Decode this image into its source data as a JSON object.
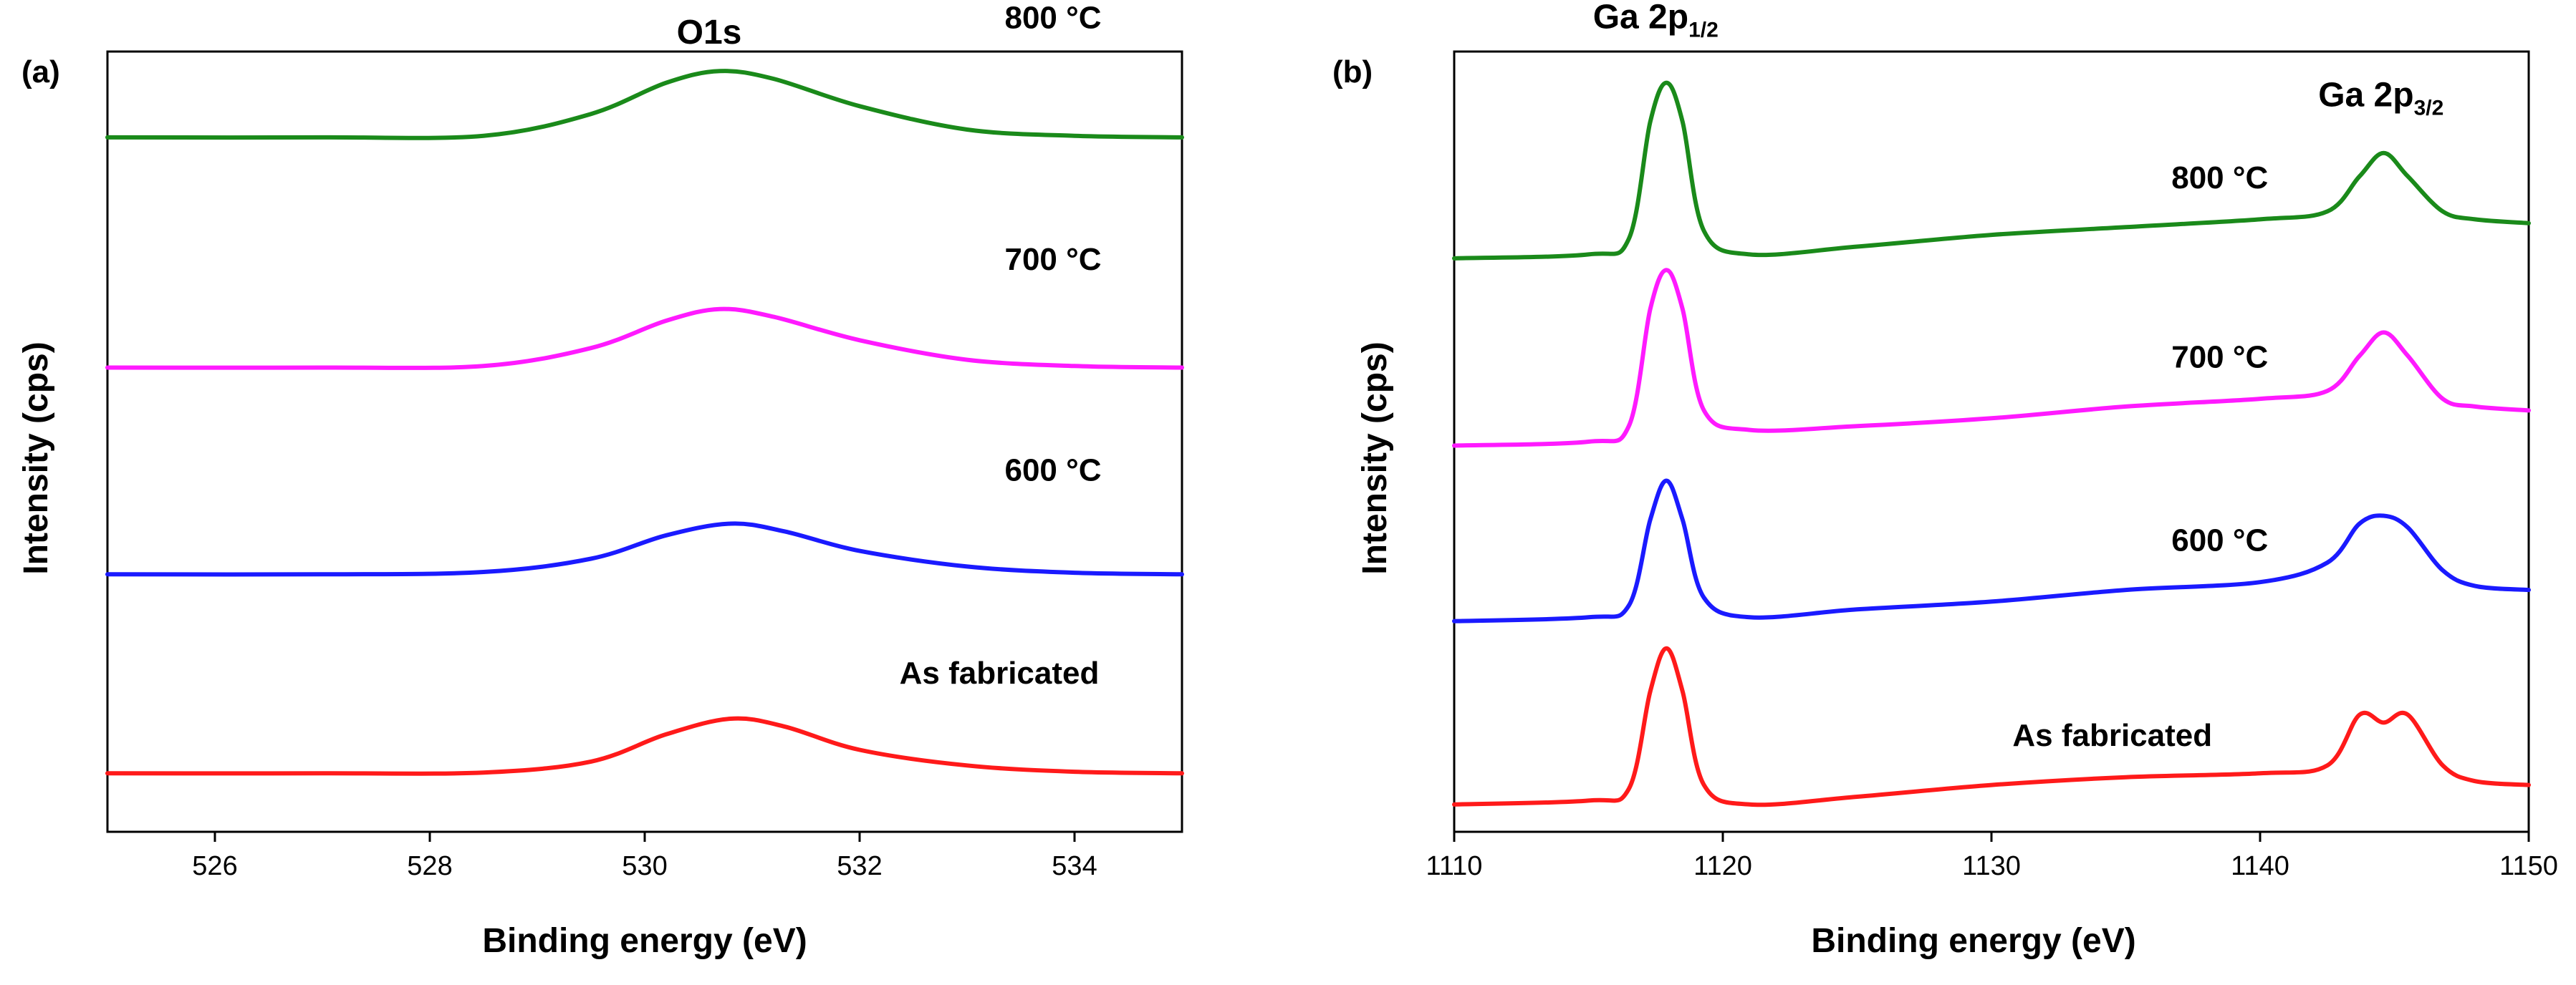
{
  "chart_data": [
    {
      "type": "line",
      "panel_label": "(a)",
      "title": "O1s",
      "xlabel": "Binding energy (eV)",
      "ylabel": "Intensity (cps)",
      "xlim": [
        525,
        535
      ],
      "ylim": [
        0,
        10
      ],
      "xticks": [
        526,
        528,
        530,
        532,
        534
      ],
      "yticks_shown": false,
      "series": [
        {
          "name": "As fabricated",
          "color": "#ff1a1a",
          "x": [
            525,
            527,
            528.5,
            529.5,
            530.2,
            530.8,
            531.3,
            532,
            533,
            534,
            535
          ],
          "y": [
            0.75,
            0.75,
            0.76,
            0.9,
            1.25,
            1.45,
            1.35,
            1.05,
            0.85,
            0.77,
            0.75
          ]
        },
        {
          "name": "600  °C",
          "color": "#1a1aff",
          "x": [
            525,
            527,
            528.5,
            529.5,
            530.2,
            530.8,
            531.3,
            532,
            533,
            534,
            535
          ],
          "y": [
            3.3,
            3.3,
            3.33,
            3.5,
            3.8,
            3.95,
            3.85,
            3.6,
            3.4,
            3.32,
            3.3
          ]
        },
        {
          "name": "700  °C",
          "color": "#ff1aff",
          "x": [
            525,
            527,
            528.5,
            529.5,
            530.2,
            530.7,
            531.2,
            532,
            533,
            534,
            535
          ],
          "y": [
            5.95,
            5.95,
            5.97,
            6.2,
            6.55,
            6.7,
            6.6,
            6.3,
            6.05,
            5.97,
            5.95
          ]
        },
        {
          "name": "800  °C",
          "color": "#1a8a1a",
          "x": [
            525,
            527,
            528.5,
            529.5,
            530.2,
            530.7,
            531.2,
            532,
            533,
            534,
            535
          ],
          "y": [
            8.9,
            8.9,
            8.92,
            9.2,
            9.6,
            9.75,
            9.65,
            9.3,
            9.0,
            8.92,
            8.9
          ]
        }
      ],
      "annotations": [
        {
          "text": "O1s",
          "x": 530.6,
          "y": 10.1
        },
        {
          "text": "800  °C",
          "x": 533.8,
          "y": 10.3
        },
        {
          "text": "700  °C",
          "x": 533.8,
          "y": 7.2
        },
        {
          "text": "600  °C",
          "x": 533.8,
          "y": 4.5
        },
        {
          "text": "As fabricated",
          "x": 533.3,
          "y": 1.9
        }
      ]
    },
    {
      "type": "line",
      "panel_label": "(b)",
      "xlabel": "Binding energy (eV)",
      "ylabel": "Intensity (cps)",
      "xlim": [
        1110,
        1150
      ],
      "ylim": [
        0,
        10
      ],
      "xticks": [
        1110,
        1120,
        1130,
        1140,
        1150
      ],
      "yticks_shown": false,
      "peak_labels": [
        {
          "main": "Ga 2p",
          "sub": "1/2",
          "x": 1117.5,
          "y": 10.3
        },
        {
          "main": "Ga 2p",
          "sub": "3/2",
          "x": 1144.5,
          "y": 9.3
        }
      ],
      "series": [
        {
          "name": "As fabricated",
          "color": "#ff1a1a",
          "x": [
            1110,
            1115,
            1116.5,
            1117.3,
            1117.9,
            1118.5,
            1119.3,
            1121,
            1125,
            1130,
            1135,
            1140,
            1142.5,
            1143.7,
            1144.6,
            1145.5,
            1146.8,
            1148,
            1150
          ],
          "y": [
            0.35,
            0.4,
            0.55,
            1.8,
            2.35,
            1.8,
            0.6,
            0.35,
            0.45,
            0.6,
            0.7,
            0.75,
            0.85,
            1.5,
            1.4,
            1.5,
            0.85,
            0.65,
            0.6
          ]
        },
        {
          "name": "600  °C",
          "color": "#1a1aff",
          "x": [
            1110,
            1115,
            1116.5,
            1117.3,
            1117.9,
            1118.5,
            1119.3,
            1121,
            1125,
            1130,
            1135,
            1140,
            1142.5,
            1143.7,
            1144.6,
            1145.5,
            1146.8,
            1148,
            1150
          ],
          "y": [
            2.7,
            2.75,
            2.9,
            4.0,
            4.5,
            4.0,
            3.0,
            2.75,
            2.85,
            2.95,
            3.1,
            3.2,
            3.45,
            3.95,
            4.05,
            3.9,
            3.35,
            3.15,
            3.1
          ]
        },
        {
          "name": "700  °C",
          "color": "#ff1aff",
          "x": [
            1110,
            1115,
            1116.5,
            1117.3,
            1117.9,
            1118.5,
            1119.3,
            1121,
            1125,
            1130,
            1135,
            1140,
            1142.5,
            1143.7,
            1144.6,
            1145.5,
            1146.8,
            1148,
            1150
          ],
          "y": [
            4.95,
            5.0,
            5.2,
            6.7,
            7.2,
            6.7,
            5.4,
            5.15,
            5.2,
            5.3,
            5.45,
            5.55,
            5.65,
            6.1,
            6.4,
            6.1,
            5.55,
            5.45,
            5.4
          ]
        },
        {
          "name": "800  °C",
          "color": "#1a8a1a",
          "x": [
            1110,
            1115,
            1116.5,
            1117.3,
            1117.9,
            1118.5,
            1119.3,
            1121,
            1125,
            1130,
            1135,
            1140,
            1142.5,
            1143.7,
            1144.6,
            1145.5,
            1146.8,
            1148,
            1150
          ],
          "y": [
            7.35,
            7.4,
            7.6,
            9.1,
            9.6,
            9.1,
            7.7,
            7.4,
            7.5,
            7.65,
            7.75,
            7.85,
            7.95,
            8.4,
            8.7,
            8.4,
            7.95,
            7.85,
            7.8
          ]
        }
      ],
      "annotations": [
        {
          "text": "800  °C",
          "x": 1138.5,
          "y": 8.25
        },
        {
          "text": "700  °C",
          "x": 1138.5,
          "y": 5.95
        },
        {
          "text": "600  °C",
          "x": 1138.5,
          "y": 3.6
        },
        {
          "text": "As fabricated",
          "x": 1134.5,
          "y": 1.1
        }
      ]
    }
  ]
}
